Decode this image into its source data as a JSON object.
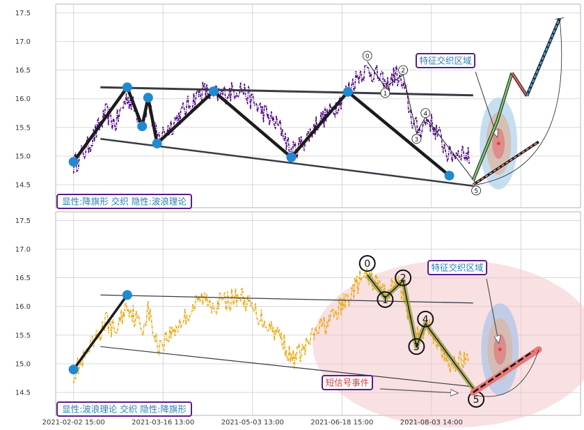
{
  "chart_data": [
    {
      "type": "line",
      "panel": "top",
      "ylim": [
        14.1,
        17.65
      ],
      "yticks": [
        14.5,
        15.0,
        15.5,
        16.0,
        16.5,
        17.0,
        17.5
      ],
      "series_color": "#4b0082",
      "wave_points": [
        {
          "x": 0,
          "y": 14.9
        },
        {
          "x": 18,
          "y": 16.2
        },
        {
          "x": 23,
          "y": 15.52
        },
        {
          "x": 25,
          "y": 16.02
        },
        {
          "x": 28,
          "y": 15.22
        },
        {
          "x": 47,
          "y": 16.13
        },
        {
          "x": 73,
          "y": 14.98
        },
        {
          "x": 92,
          "y": 16.12
        },
        {
          "x": 126,
          "y": 14.66
        }
      ],
      "flag_upper": [
        {
          "x": 9,
          "y": 16.2
        },
        {
          "x": 134,
          "y": 16.06
        }
      ],
      "flag_lower": [
        {
          "x": 9,
          "y": 15.3
        },
        {
          "x": 134,
          "y": 14.48
        }
      ],
      "wave_labels": [
        {
          "label": "0",
          "x": 98.5,
          "y": 16.75
        },
        {
          "label": "1",
          "x": 104.5,
          "y": 16.1
        },
        {
          "label": "2",
          "x": 110.5,
          "y": 16.5
        },
        {
          "label": "3",
          "x": 115,
          "y": 15.3
        },
        {
          "label": "4",
          "x": 118,
          "y": 15.75
        },
        {
          "label": "5",
          "x": 135,
          "y": 14.4
        }
      ],
      "wave_path": [
        {
          "x": 98.5,
          "y": 16.65
        },
        {
          "x": 104.5,
          "y": 16.2
        },
        {
          "x": 110.5,
          "y": 16.42
        },
        {
          "x": 115,
          "y": 15.4
        },
        {
          "x": 118,
          "y": 15.68
        },
        {
          "x": 135,
          "y": 14.52
        }
      ],
      "forecast_green": [
        {
          "x": 134,
          "y": 14.58
        },
        {
          "x": 142,
          "y": 15.6
        },
        {
          "x": 147,
          "y": 16.45
        }
      ],
      "forecast_red": [
        {
          "x": 147,
          "y": 16.45
        },
        {
          "x": 152,
          "y": 16.05
        }
      ],
      "forecast_blue": [
        {
          "x": 152,
          "y": 16.05
        },
        {
          "x": 163,
          "y": 17.4
        }
      ],
      "forecast_dashed": [
        {
          "x": 134,
          "y": 14.5
        },
        {
          "x": 156,
          "y": 15.25
        }
      ],
      "ellipse_center": {
        "x": 142.5,
        "y": 15.22
      },
      "annotation": "特征交织区域",
      "pattern_label": "显性:降旗形 交织 隐性:波浪理论"
    },
    {
      "type": "line",
      "panel": "bottom",
      "ylim": [
        14.1,
        17.65
      ],
      "yticks": [
        14.5,
        15.0,
        15.5,
        16.0,
        16.5,
        17.0,
        17.5
      ],
      "series_color": "#e8a913",
      "wave_points": [
        {
          "x": 0,
          "y": 14.9
        },
        {
          "x": 18,
          "y": 16.2
        }
      ],
      "flag_upper": [
        {
          "x": 9,
          "y": 16.2
        },
        {
          "x": 134,
          "y": 16.06
        }
      ],
      "flag_lower": [
        {
          "x": 9,
          "y": 15.3
        },
        {
          "x": 134,
          "y": 14.6
        }
      ],
      "wave_labels": [
        {
          "label": "0",
          "x": 98.5,
          "y": 16.75
        },
        {
          "label": "1",
          "x": 104.5,
          "y": 16.12
        },
        {
          "label": "2",
          "x": 110.5,
          "y": 16.5
        },
        {
          "label": "3",
          "x": 115,
          "y": 15.3
        },
        {
          "label": "4",
          "x": 118,
          "y": 15.78
        },
        {
          "label": "5",
          "x": 135,
          "y": 14.38
        }
      ],
      "wave_path": [
        {
          "x": 98.5,
          "y": 16.55
        },
        {
          "x": 104.5,
          "y": 16.15
        },
        {
          "x": 110.5,
          "y": 16.45
        },
        {
          "x": 115,
          "y": 15.3
        },
        {
          "x": 118,
          "y": 15.7
        },
        {
          "x": 135,
          "y": 14.5
        }
      ],
      "forecast_pink": [
        {
          "x": 134,
          "y": 14.5
        },
        {
          "x": 156,
          "y": 15.25
        }
      ],
      "ellipse_center": {
        "x": 143,
        "y": 15.25
      },
      "annotation": "特征交织区域",
      "signal_label": "短信号事件",
      "pattern_label": "显性:波浪理论 交织 隐性:降旗形"
    }
  ],
  "x_axis": {
    "tick_labels": [
      "2021-02-02 15:00",
      "2021-03-16 13:00",
      "2021-05-03 13:00",
      "2021-06-18 15:00",
      "2021-08-03 14:00"
    ],
    "tick_positions": [
      0,
      30,
      60,
      90,
      120
    ]
  },
  "colors": {
    "purple_border": "#5a1a8c",
    "label_text": "#2a7fb8",
    "grid": "#cccccc",
    "blue_marker": "#1f8ad1"
  }
}
